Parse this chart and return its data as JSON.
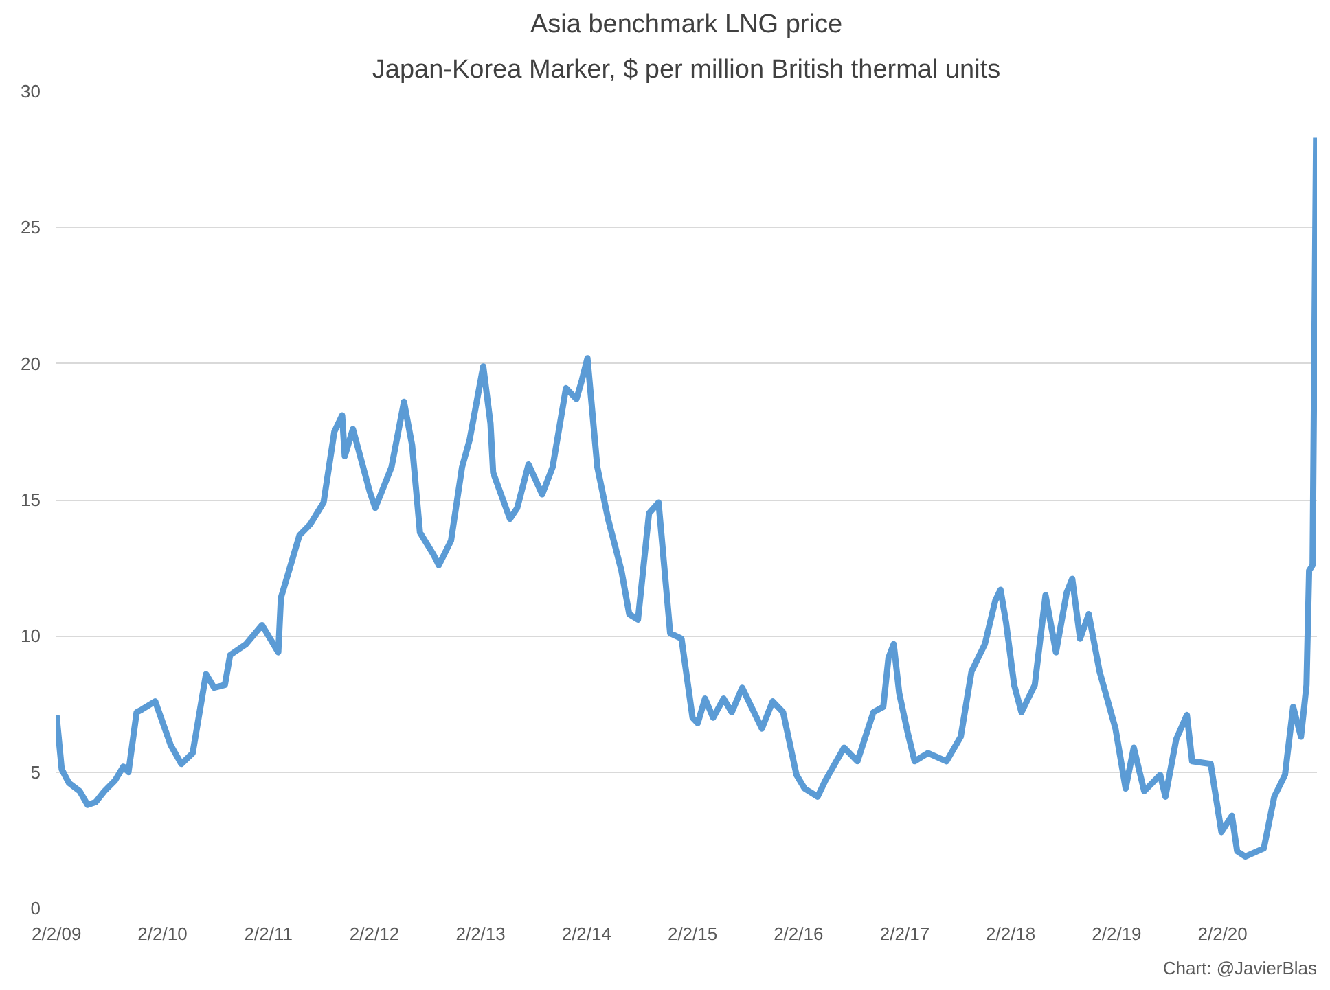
{
  "chart_data": {
    "type": "line",
    "title": "Asia benchmark LNG price",
    "subtitle": "Japan-Korea Marker, $ per million British thermal units",
    "annotations": [
      "Chart: @JavierBlas"
    ],
    "x": [
      "2009-02-02",
      "2009-02-20",
      "2009-03-17",
      "2009-04-23",
      "2009-05-20",
      "2009-06-17",
      "2009-07-17",
      "2009-08-23",
      "2009-09-20",
      "2009-10-08",
      "2009-11-05",
      "2009-11-23",
      "2010-01-08",
      "2010-03-02",
      "2010-04-08",
      "2010-05-17",
      "2010-07-02",
      "2010-07-30",
      "2010-09-05",
      "2010-09-23",
      "2010-11-17",
      "2011-01-11",
      "2011-03-08",
      "2011-03-17",
      "2011-04-14",
      "2011-05-20",
      "2011-06-26",
      "2011-08-11",
      "2011-09-17",
      "2011-10-14",
      "2011-10-23",
      "2011-11-20",
      "2012-01-17",
      "2012-02-05",
      "2012-04-01",
      "2012-05-14",
      "2012-06-11",
      "2012-07-08",
      "2012-08-23",
      "2012-09-11",
      "2012-10-23",
      "2012-11-30",
      "2012-12-26",
      "2013-02-11",
      "2013-03-08",
      "2013-03-17",
      "2013-05-14",
      "2013-06-08",
      "2013-07-17",
      "2013-09-02",
      "2013-10-08",
      "2013-11-23",
      "2013-12-29",
      "2014-01-17",
      "2014-02-05",
      "2014-03-11",
      "2014-04-17",
      "2014-06-02",
      "2014-06-29",
      "2014-07-29",
      "2014-09-05",
      "2014-10-08",
      "2014-11-17",
      "2014-12-26",
      "2015-02-02",
      "2015-02-20",
      "2015-03-17",
      "2015-04-14",
      "2015-05-20",
      "2015-06-17",
      "2015-07-23",
      "2015-09-29",
      "2015-11-05",
      "2015-12-11",
      "2016-01-26",
      "2016-02-23",
      "2016-04-08",
      "2016-05-05",
      "2016-07-08",
      "2016-08-23",
      "2016-10-17",
      "2016-11-20",
      "2016-12-08",
      "2016-12-26",
      "2017-01-14",
      "2017-02-11",
      "2017-03-08",
      "2017-04-23",
      "2017-06-26",
      "2017-08-14",
      "2017-09-20",
      "2017-11-05",
      "2017-12-11",
      "2017-12-29",
      "2018-01-17",
      "2018-02-14",
      "2018-03-11",
      "2018-04-26",
      "2018-06-02",
      "2018-07-08",
      "2018-08-14",
      "2018-09-02",
      "2018-09-29",
      "2018-10-29",
      "2018-12-05",
      "2019-01-29",
      "2019-03-05",
      "2019-04-02",
      "2019-05-08",
      "2019-07-02",
      "2019-07-20",
      "2019-08-26",
      "2019-10-02",
      "2019-10-20",
      "2019-12-23",
      "2020-01-29",
      "2020-03-05",
      "2020-03-23",
      "2020-04-20",
      "2020-06-23",
      "2020-07-29",
      "2020-09-04",
      "2020-10-02",
      "2020-10-29",
      "2020-11-17",
      "2020-11-26",
      "2020-12-08",
      "2020-12-20"
    ],
    "series": [
      {
        "color": "#5b9bd5",
        "values": [
          7.1,
          5.1,
          4.6,
          4.3,
          3.8,
          3.9,
          4.3,
          4.7,
          5.2,
          5.0,
          7.2,
          7.3,
          7.6,
          6.0,
          5.3,
          5.7,
          8.6,
          8.1,
          8.2,
          9.3,
          9.7,
          10.4,
          9.4,
          11.4,
          12.4,
          13.7,
          14.1,
          14.9,
          17.5,
          18.1,
          16.6,
          17.6,
          15.3,
          14.7,
          16.2,
          18.6,
          17.0,
          13.8,
          13.0,
          12.6,
          13.5,
          16.2,
          17.2,
          19.9,
          17.8,
          16.0,
          14.3,
          14.7,
          16.3,
          15.2,
          16.2,
          19.1,
          18.7,
          19.4,
          20.2,
          16.2,
          14.3,
          12.4,
          10.8,
          10.6,
          14.5,
          14.9,
          10.1,
          9.9,
          7.0,
          6.8,
          7.7,
          7.0,
          7.7,
          7.2,
          8.1,
          6.6,
          7.6,
          7.2,
          4.9,
          4.4,
          4.1,
          4.7,
          5.9,
          5.4,
          7.2,
          7.4,
          9.2,
          9.7,
          7.9,
          6.5,
          5.4,
          5.7,
          5.4,
          6.3,
          8.7,
          9.7,
          11.3,
          11.7,
          10.5,
          8.2,
          7.2,
          8.2,
          11.5,
          9.4,
          11.6,
          12.1,
          9.9,
          10.8,
          8.7,
          6.6,
          4.4,
          5.9,
          4.3,
          4.9,
          4.1,
          6.2,
          7.1,
          5.4,
          5.3,
          2.8,
          3.4,
          2.1,
          1.9,
          2.2,
          4.1,
          4.9,
          7.4,
          6.3,
          8.2,
          12.4,
          12.6,
          28.3
        ]
      }
    ],
    "xlim": [
      "2009-01-30",
      "2020-12-23"
    ],
    "xticks": [
      {
        "value": "2009-02-02",
        "label": "2/2/09"
      },
      {
        "value": "2010-02-02",
        "label": "2/2/10"
      },
      {
        "value": "2011-02-02",
        "label": "2/2/11"
      },
      {
        "value": "2012-02-02",
        "label": "2/2/12"
      },
      {
        "value": "2013-02-02",
        "label": "2/2/13"
      },
      {
        "value": "2014-02-02",
        "label": "2/2/14"
      },
      {
        "value": "2015-02-02",
        "label": "2/2/15"
      },
      {
        "value": "2016-02-02",
        "label": "2/2/16"
      },
      {
        "value": "2017-02-02",
        "label": "2/2/17"
      },
      {
        "value": "2018-02-02",
        "label": "2/2/18"
      },
      {
        "value": "2019-02-02",
        "label": "2/2/19"
      },
      {
        "value": "2020-02-02",
        "label": "2/2/20"
      }
    ],
    "ylim": [
      0,
      30
    ],
    "yticks": [
      0,
      5,
      10,
      15,
      20,
      25,
      30
    ],
    "grid": "y",
    "marker": "none",
    "line_style": "solid"
  }
}
